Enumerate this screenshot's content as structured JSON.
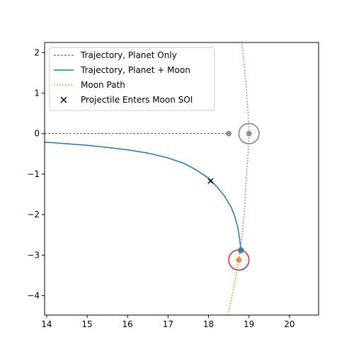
{
  "chart_data": {
    "type": "line",
    "title": "",
    "xlabel": "",
    "ylabel": "",
    "xlim": [
      13.95,
      20.72
    ],
    "ylim": [
      -4.48,
      2.25
    ],
    "xticks": [
      14,
      15,
      16,
      17,
      18,
      19,
      20
    ],
    "yticks": [
      2,
      1,
      0,
      -1,
      -2,
      -3,
      -4
    ],
    "grid": false,
    "legend_position": "upper-left",
    "legend": [
      {
        "label": "Trajectory, Planet Only",
        "style": "dashed",
        "color": "#000000"
      },
      {
        "label": "Trajectory, Planet + Moon",
        "style": "solid",
        "color": "#1f77b4"
      },
      {
        "label": "Moon Path",
        "style": "dotted",
        "color": "#ff7f0e"
      },
      {
        "label": "Projectile Enters Moon SOI",
        "style": "x-marker",
        "color": "#000000"
      }
    ],
    "series": [
      {
        "name": "Trajectory, Planet Only",
        "style": "dashed",
        "color": "#000000",
        "x": [
          13.95,
          18.5
        ],
        "y": [
          0,
          0
        ]
      },
      {
        "name": "Trajectory, Planet + Moon",
        "style": "solid",
        "color": "#1f77b4",
        "x": [
          13.95,
          14.5,
          15.0,
          15.5,
          16.0,
          16.5,
          17.0,
          17.4,
          17.7,
          18.0,
          18.2,
          18.4,
          18.55,
          18.65,
          18.72,
          18.77,
          18.8
        ],
        "y": [
          -0.21,
          -0.25,
          -0.29,
          -0.34,
          -0.4,
          -0.48,
          -0.6,
          -0.74,
          -0.9,
          -1.1,
          -1.3,
          -1.55,
          -1.8,
          -2.05,
          -2.3,
          -2.6,
          -2.88
        ]
      },
      {
        "name": "Moon Path (past)",
        "style": "dotted",
        "color": "#ff7f0e",
        "x": [
          18.48,
          18.58,
          18.68,
          18.75
        ],
        "y": [
          -4.48,
          -4.0,
          -3.5,
          -3.12
        ]
      },
      {
        "name": "Moon Path (future)",
        "style": "dotted",
        "color": "#808080",
        "x": [
          18.75,
          18.82,
          18.88,
          18.94,
          18.98,
          19.0,
          18.98,
          18.9,
          18.82
        ],
        "y": [
          -3.12,
          -2.6,
          -2.0,
          -1.0,
          -0.5,
          0.0,
          0.5,
          1.5,
          2.25
        ]
      }
    ],
    "soi_marker": {
      "x": 18.05,
      "y": -1.17,
      "label": "Projectile Enters Moon SOI"
    },
    "points": [
      {
        "name": "planet-only-end",
        "x": 18.5,
        "y": 0.0,
        "color": "#808080",
        "size": "small"
      },
      {
        "name": "ghost-moon",
        "x": 19.0,
        "y": 0.0,
        "color": "#808080",
        "size": "small"
      },
      {
        "name": "projectile",
        "x": 18.8,
        "y": -2.88,
        "color": "#1f77b4",
        "size": "small",
        "edge": "#808080"
      },
      {
        "name": "moon",
        "x": 18.75,
        "y": -3.12,
        "color": "#ff7f0e",
        "size": "small"
      }
    ],
    "circles": [
      {
        "name": "ghost-soi",
        "x": 19.0,
        "y": 0.0,
        "r": 0.25,
        "color": "#808080"
      },
      {
        "name": "moon-soi",
        "x": 18.75,
        "y": -3.12,
        "r": 0.25,
        "color": "#d62728"
      }
    ]
  }
}
